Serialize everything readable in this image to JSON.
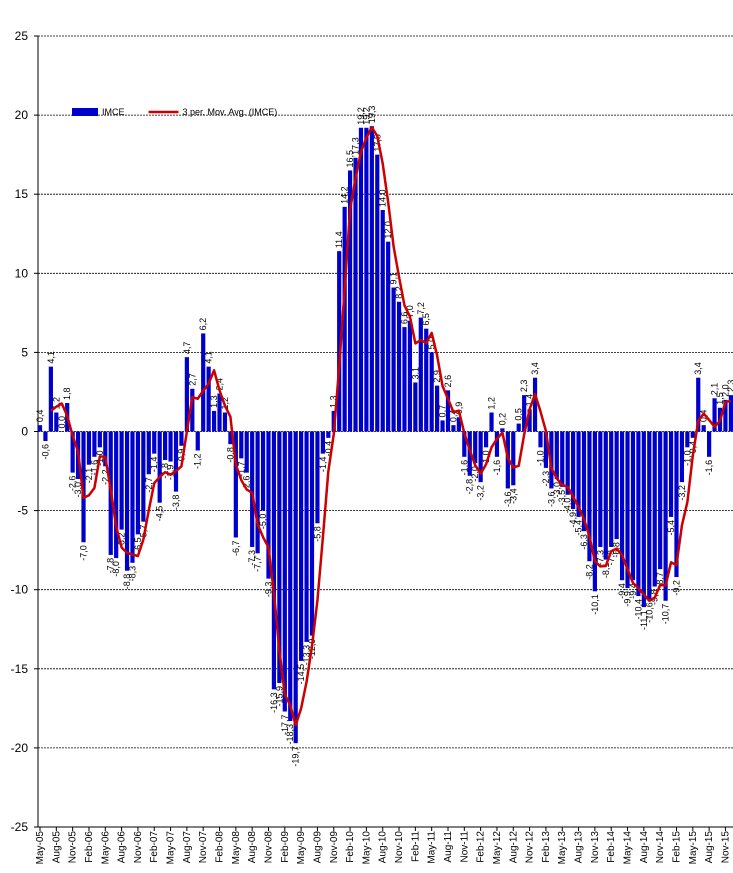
{
  "chart_data": {
    "type": "bar",
    "legend": "upper left",
    "grid": true,
    "ylim": [
      -25,
      25
    ],
    "yticks": [
      -25,
      -20,
      -15,
      -10,
      -5,
      0,
      5,
      10,
      15,
      20,
      25
    ],
    "categories": [
      "May-05",
      null,
      null,
      "Aug-05",
      null,
      null,
      "Nov-05",
      null,
      null,
      "Feb-06",
      null,
      null,
      "May-06",
      null,
      null,
      "Aug-06",
      null,
      null,
      "Nov-06",
      null,
      null,
      "Feb-07",
      null,
      null,
      "May-07",
      null,
      null,
      "Aug-07",
      null,
      null,
      "Nov-07",
      null,
      null,
      "Feb-08",
      null,
      null,
      "May-08",
      null,
      null,
      "Aug-08",
      null,
      null,
      "Nov-08",
      null,
      null,
      "Feb-09",
      null,
      null,
      "May-09",
      null,
      null,
      "Aug-09",
      null,
      null,
      "Nov-09",
      null,
      null,
      "Feb-10",
      null,
      null,
      "May-10",
      null,
      null,
      "Aug-10",
      null,
      null,
      "Nov-10",
      null,
      null,
      "Feb-11",
      null,
      null,
      "May-11",
      null,
      null,
      "Aug-11",
      null,
      null,
      "Nov-11",
      null,
      null,
      "Feb-12",
      null,
      null,
      "May-12",
      null,
      null,
      "Aug-12",
      null,
      null,
      "Nov-12",
      null,
      null,
      "Feb-13",
      null,
      null,
      "May-13",
      null,
      null,
      "Aug-13",
      null,
      null,
      "Nov-13",
      null,
      null,
      "Feb-14",
      null,
      null,
      "May-14",
      null,
      null,
      "Aug-14",
      null,
      null,
      "Nov-14",
      null,
      null,
      "Feb-15",
      null,
      null,
      "May-15",
      null,
      null,
      "Aug-15",
      null,
      null,
      "Nov-15",
      null
    ],
    "series": [
      {
        "name": "IMCE",
        "type": "bar",
        "color": "#0000cc",
        "label_color": "#008000",
        "values": [
          0.4,
          -0.6,
          4.1,
          1.2,
          0.0,
          1.8,
          -2.6,
          -3.0,
          -7.0,
          -2.1,
          -1.6,
          -1.0,
          -2.2,
          -7.8,
          -8.0,
          -6.2,
          -8.8,
          -8.3,
          -6.5,
          -5.7,
          -2.7,
          -1.4,
          -4.5,
          -1.8,
          -1.9,
          -3.8,
          -0.9,
          4.7,
          2.7,
          -1.2,
          6.2,
          4.1,
          1.3,
          2.4,
          1.2,
          -0.8,
          -6.7,
          -1.7,
          -2.6,
          -7.3,
          -7.7,
          -5.0,
          -9.3,
          -16.3,
          -15.9,
          -17.7,
          -18.3,
          -19.7,
          -14.5,
          -13.3,
          -12.9,
          -5.8,
          -1.4,
          -0.4,
          1.3,
          11.4,
          14.2,
          16.5,
          17.3,
          19.2,
          19.2,
          19.3,
          17.5,
          14.0,
          12.0,
          9.1,
          8.2,
          6.6,
          7.0,
          3.1,
          7.2,
          6.5,
          5.0,
          2.9,
          0.7,
          2.6,
          0.4,
          0.9,
          -1.6,
          -2.8,
          -2.0,
          -3.2,
          -1.0,
          1.2,
          -1.6,
          0.2,
          -3.6,
          -3.4,
          0.5,
          2.3,
          1.4,
          3.4,
          -1.0,
          -2.3,
          -3.6,
          -3.0,
          -3.5,
          -4.0,
          -4.9,
          -5.4,
          -6.3,
          -8.2,
          -10.1,
          -7.3,
          -8.1,
          -7.3,
          -6.8,
          -9.4,
          -9.9,
          -9.4,
          -10.4,
          -11.1,
          -10.6,
          -9.8,
          -8.7,
          -10.7,
          -5.4,
          -9.2,
          -3.2,
          -1.0,
          -0.4,
          3.4,
          0.4,
          -1.6,
          2.1,
          1.5,
          2.0,
          2.3
        ],
        "value_labels": [
          "0,4",
          "-0,6",
          "4,1",
          "1,2",
          "0,0",
          "1,8",
          "-2,6",
          "-3,0",
          "-7,0",
          "-2,1",
          "-1,6",
          "-1,0",
          "-2,2",
          "-7,8",
          "-8,0",
          "-6,2",
          "-8,8",
          "-8,3",
          "-6,5",
          "-5,7",
          "-2,7",
          "-1,4",
          "-4,5",
          "-1,8",
          "-1,9",
          "-3,8",
          "-0,9",
          "4,7",
          "2,7",
          "-1,2",
          "6,2",
          "4,1",
          "1,3",
          "2,4",
          "1,2",
          "-0,8",
          "-6,7",
          "-1,7",
          "-2,6",
          "-7,3",
          "-7,7",
          "-5,0",
          "-9,3",
          "-16,3",
          "-15,9",
          "-17,7",
          "-18,3",
          "-19,7",
          "-14,5",
          "-13,3",
          "-12,9",
          "-5,8",
          "-1,4",
          "-0,4",
          "1,3",
          "11,4",
          "14,2",
          "16,5",
          "17,3",
          "19,2",
          "19,2",
          "19,3",
          "17,5",
          "14,0",
          "12,0",
          "9,1",
          "8,2",
          "6,6",
          "7,0",
          "3,1",
          "7,2",
          "6,5",
          "5,0",
          "2,9",
          "0,7",
          "2,6",
          "0,4",
          "0,9",
          "-1,6",
          "-2,8",
          "-2,0",
          "-3,2",
          "-1,0",
          "1,2",
          "-1,6",
          "0,2",
          "-3,6",
          "-3,4",
          "0,5",
          "2,3",
          "1,4",
          "3,4",
          "-1,0",
          "-2,3",
          "-3,6",
          "-3,0",
          "-3,5",
          "-4,0",
          "-4,9",
          "-5,4",
          "-6,3",
          "-8,2",
          "-10,1",
          "-7,3",
          "-8,1",
          "-7,3",
          "-6,8",
          "-9,4",
          "-9,9",
          "-9,4",
          "-10,4",
          "-11,1",
          "-10,6",
          "-9,8",
          "-8,7",
          "-10,7",
          "-5,4",
          "-9,2",
          "-3,2",
          "-1,0",
          "-0,4",
          "3,4",
          "0,4",
          "-1,6",
          "2,1",
          "1,5",
          "2,0",
          "2,3"
        ]
      },
      {
        "name": "3 per. Mov. Avg. (IMCE)",
        "type": "line",
        "color": "#cc0000",
        "values": [
          null,
          null,
          1.3,
          1.57,
          1.77,
          1.0,
          -0.27,
          -1.27,
          -4.2,
          -4.03,
          -3.57,
          -1.57,
          -1.6,
          -3.67,
          -6.0,
          -7.33,
          -7.67,
          -7.77,
          -7.87,
          -6.83,
          -4.97,
          -3.27,
          -2.87,
          -2.57,
          -2.73,
          -2.5,
          -2.2,
          0,
          2.17,
          2.07,
          2.57,
          3.03,
          3.87,
          2.6,
          1.63,
          0.93,
          -2.1,
          -3.07,
          -3.67,
          -3.87,
          -5.87,
          -6.67,
          -7.33,
          -10.2,
          -13.83,
          -16.63,
          -17.3,
          -18.57,
          -17.5,
          -15.83,
          -13.57,
          -10.67,
          -6.7,
          -2.53,
          -0.17,
          4.1,
          8.97,
          14.03,
          16.0,
          17.67,
          18.57,
          19.23,
          18.67,
          16.93,
          14.5,
          11.7,
          9.77,
          7.97,
          7.27,
          5.57,
          5.77,
          5.6,
          6.23,
          4.8,
          2.87,
          2.07,
          1.23,
          1.3,
          -0.1,
          -1.17,
          -2.13,
          -2.67,
          -2.07,
          -1.0,
          -0.47,
          -0.07,
          -1.67,
          -2.27,
          -2.17,
          -0.2,
          1.4,
          2.37,
          1.27,
          0.03,
          -2.3,
          -2.97,
          -3.37,
          -3.5,
          -4.13,
          -4.77,
          -5.53,
          -6.63,
          -8.2,
          -8.53,
          -8.5,
          -7.57,
          -7.4,
          -7.83,
          -8.7,
          -9.57,
          -9.9,
          -10.3,
          -10.7,
          -10.5,
          -9.7,
          -9.73,
          -8.27,
          -8.43,
          -5.93,
          -4.47,
          -1.53,
          0.67,
          1.13,
          0.73,
          0.3,
          0.67,
          1.87,
          1.93
        ]
      }
    ]
  }
}
